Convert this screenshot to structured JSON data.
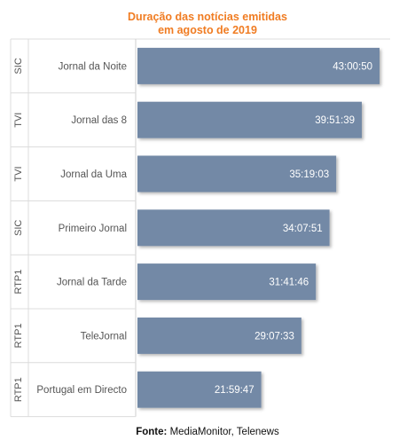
{
  "chart_data": {
    "type": "bar",
    "orientation": "horizontal",
    "title_lines": [
      "Duração das notícias emitidas",
      "em agosto de 2019"
    ],
    "channels": [
      "SIC",
      "TVI",
      "TVI",
      "SIC",
      "RTP1",
      "RTP1",
      "RTP1"
    ],
    "categories": [
      "Jornal da Noite",
      "Jornal das 8",
      "Jornal da Uma",
      "Primeiro Jornal",
      "Jornal da Tarde",
      "TeleJornal",
      "Portugal em Directo"
    ],
    "value_labels": [
      "43:00:50",
      "39:51:39",
      "35:19:03",
      "34:07:51",
      "31:41:46",
      "29:07:33",
      "21:59:47"
    ],
    "values_seconds": [
      154850,
      143499,
      127143,
      122871,
      114106,
      104853,
      79187
    ],
    "xlim_seconds": [
      0,
      154850
    ],
    "bar_color": "#7389a6",
    "title_color": "#f07c22",
    "grid": false
  },
  "source": {
    "label": "Fonte:",
    "text": "MediaMonitor, Telenews"
  }
}
